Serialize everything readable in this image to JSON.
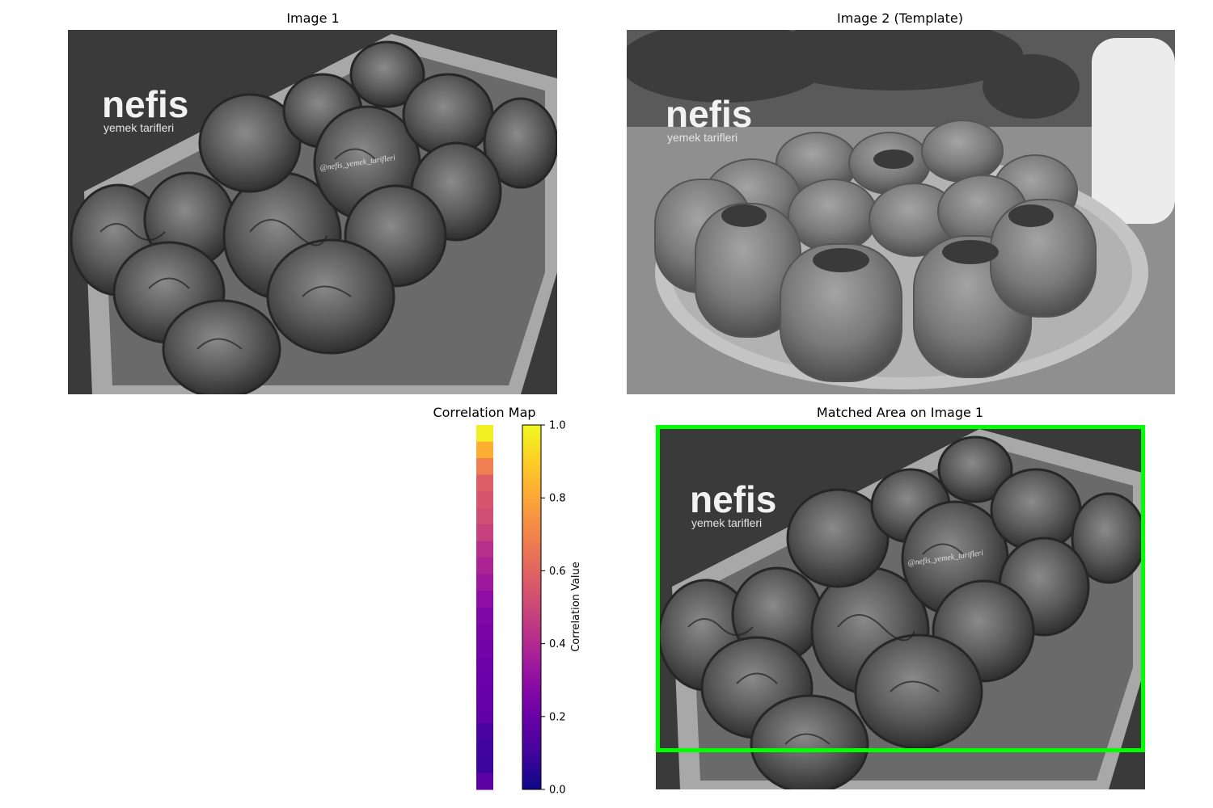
{
  "panels": {
    "image1_title": "Image 1",
    "image2_title": "Image 2 (Template)",
    "correlation_title": "Correlation Map",
    "matched_title": "Matched Area on Image 1"
  },
  "watermarks": {
    "brand": "nefis",
    "tagline": "yemek tarifleri",
    "handle": "@nefis_yemek_tarifleri"
  },
  "colors": {
    "match_box": "#00ff00"
  },
  "chart_data": {
    "type": "heatmap",
    "title": "Correlation Map",
    "colormap": "plasma",
    "colorbar_label": "Correlation Value",
    "colorbar_range": [
      0,
      1
    ],
    "colorbar_ticks": [
      "0.0",
      "0.2",
      "0.4",
      "0.6",
      "0.8",
      "1.0"
    ],
    "columns": 1,
    "rows": 22,
    "values": [
      0.98,
      0.82,
      0.68,
      0.58,
      0.55,
      0.52,
      0.48,
      0.42,
      0.38,
      0.34,
      0.3,
      0.26,
      0.24,
      0.22,
      0.21,
      0.2,
      0.19,
      0.18,
      0.12,
      0.1,
      0.09,
      0.16
    ]
  }
}
